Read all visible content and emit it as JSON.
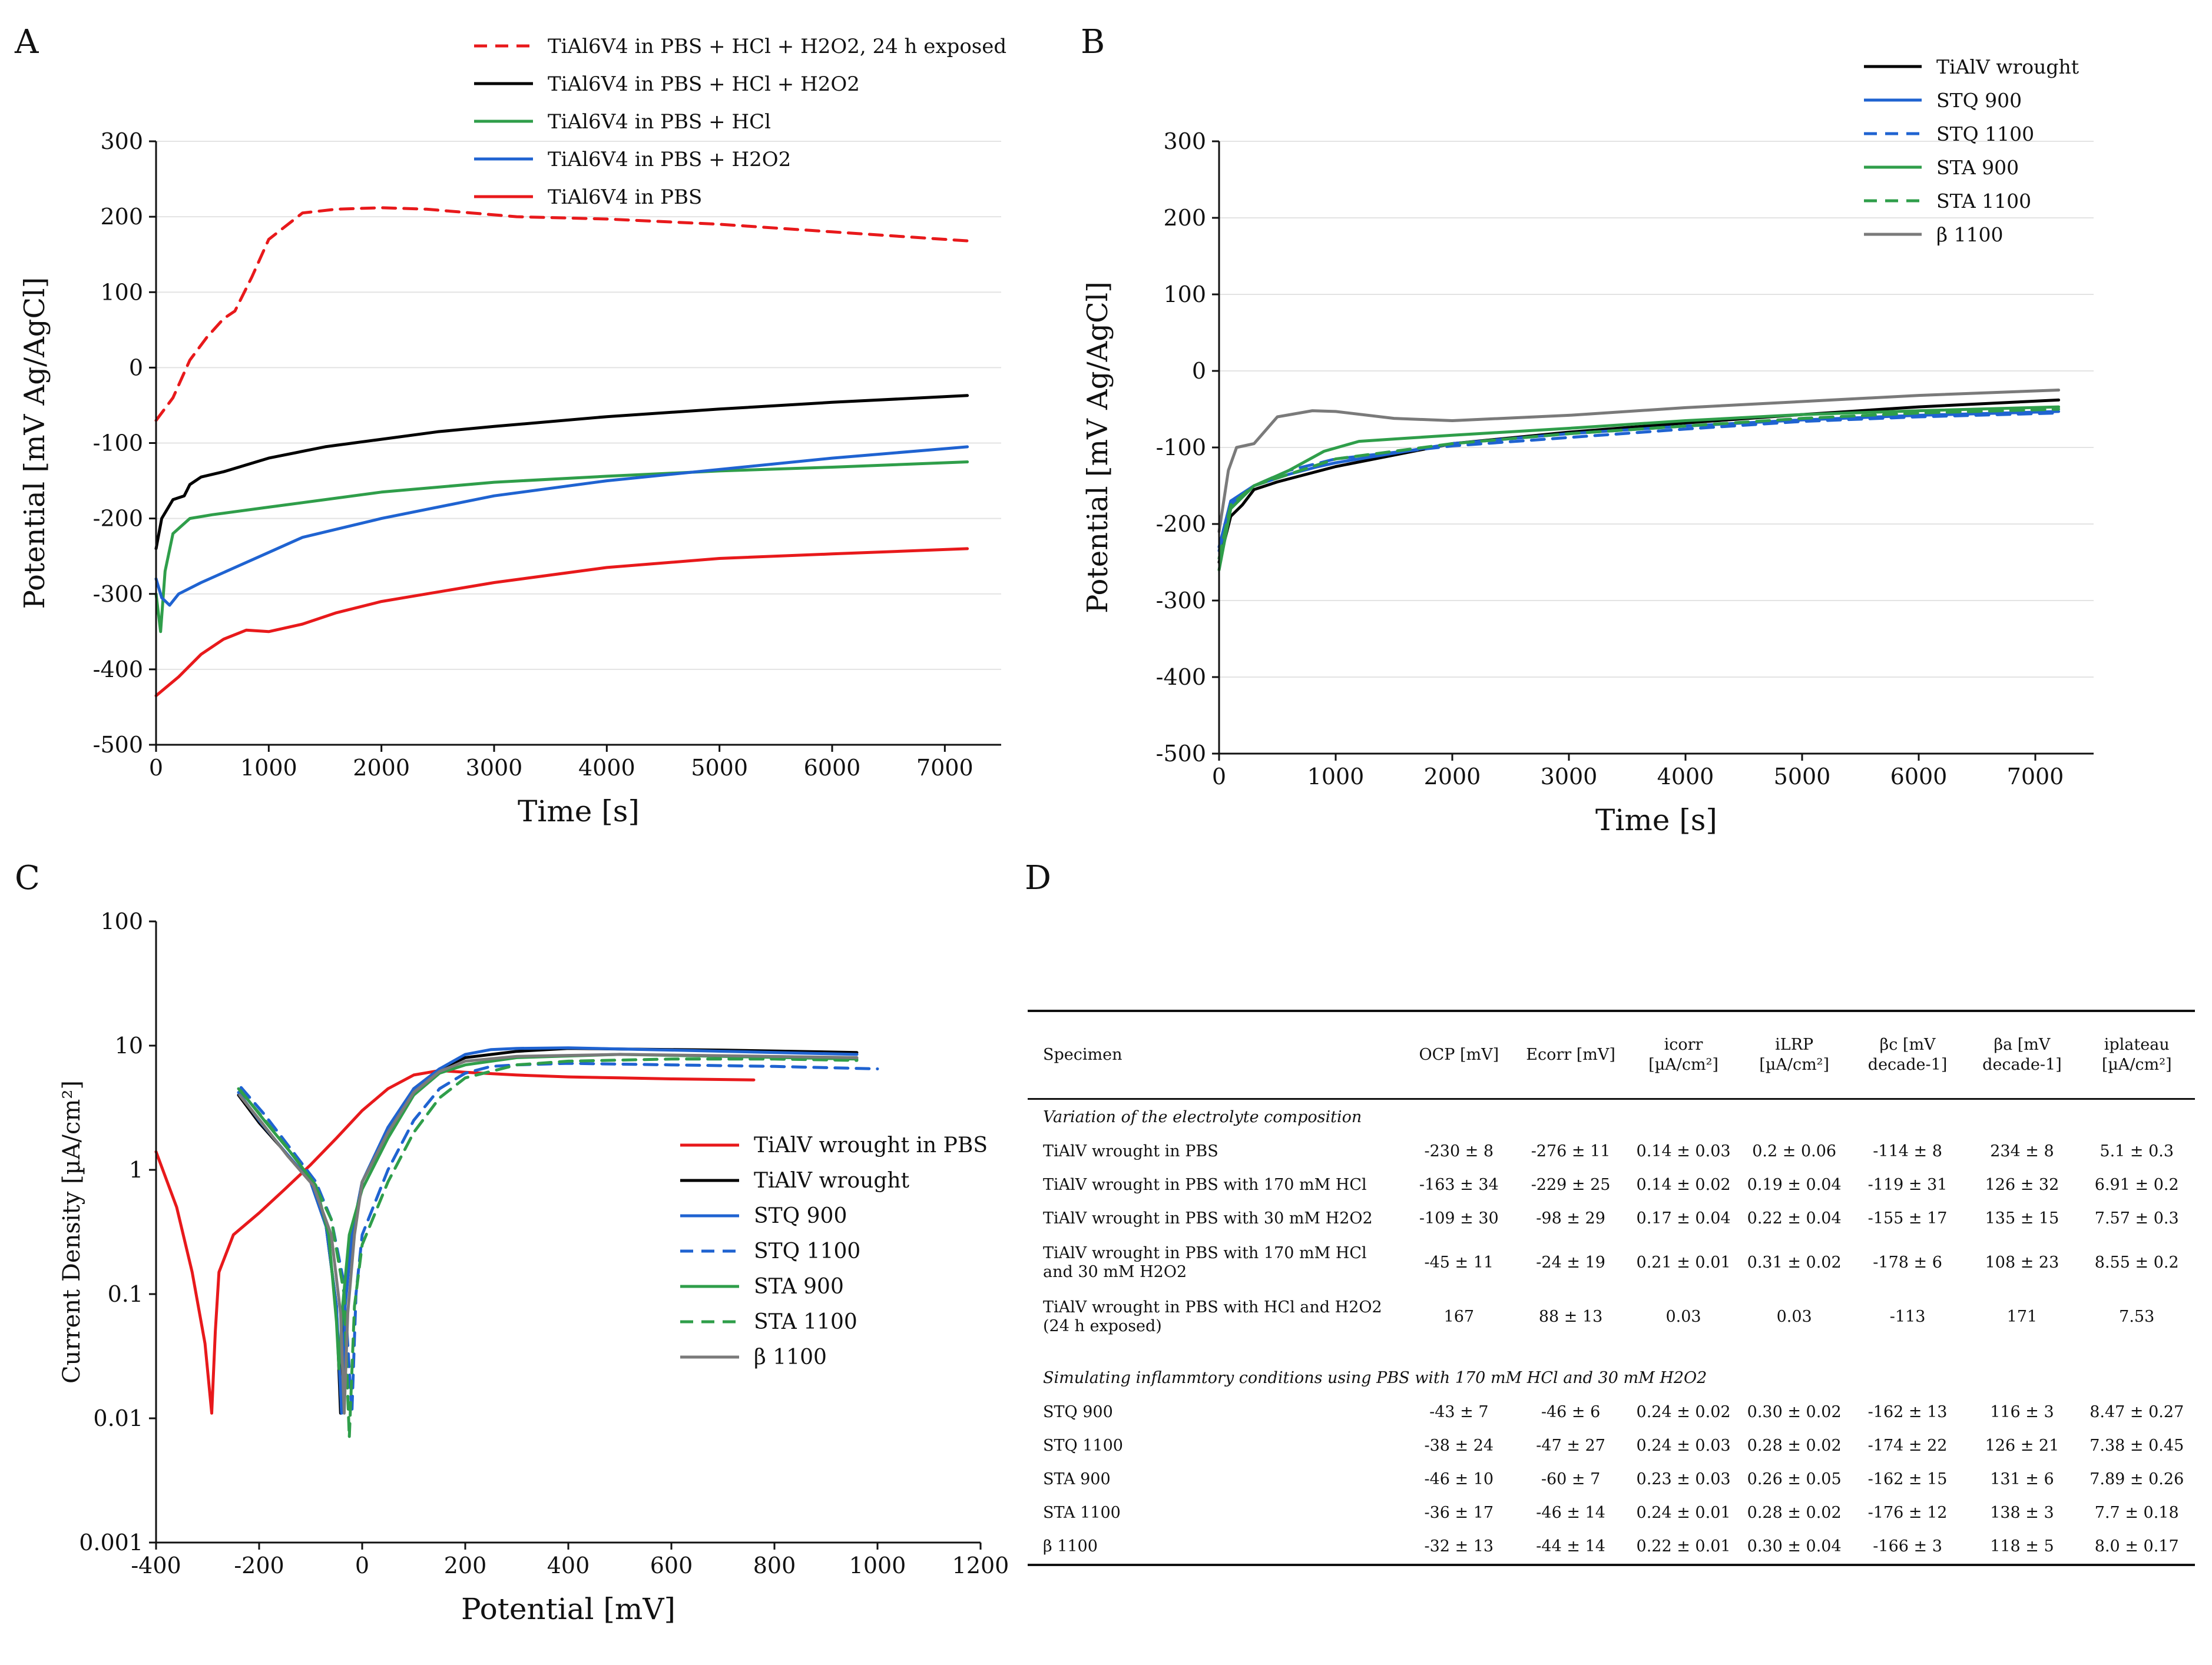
{
  "panels": {
    "A": "A",
    "B": "B",
    "C": "C",
    "D": "D"
  },
  "colors": {
    "red": "#e8191b",
    "black": "#000000",
    "green": "#2f9e4a",
    "blue": "#1f63d1",
    "gray": "#7a7a7a",
    "grid": "#e3e3e3"
  },
  "chart_data": [
    {
      "panel": "A",
      "type": "line",
      "xlabel": "Time [s]",
      "ylabel": "Potential [mV Ag/AgCl]",
      "xlim": [
        0,
        7500
      ],
      "ylim": [
        -500,
        300
      ],
      "x_ticks": [
        0,
        1000,
        2000,
        3000,
        4000,
        5000,
        6000,
        7000
      ],
      "y_ticks": [
        -500,
        -400,
        -300,
        -200,
        -100,
        0,
        100,
        200,
        300
      ],
      "grid": "horizontal",
      "legend_position": "top-right",
      "legend": [
        "TiAl6V4 in PBS + HCl + H2O2, 24 h exposed",
        "TiAl6V4 in PBS + HCl + H2O2",
        "TiAl6V4 in PBS + HCl",
        "TiAl6V4 in PBS + H2O2",
        "TiAl6V4 in PBS"
      ],
      "series": [
        {
          "name": "TiAl6V4 in PBS + HCl + H2O2, 24 h exposed",
          "color": "#e8191b",
          "dash": true,
          "x": [
            0,
            150,
            300,
            450,
            600,
            700,
            850,
            1000,
            1300,
            1600,
            2000,
            2400,
            2800,
            3200,
            4000,
            5000,
            6000,
            7200
          ],
          "y": [
            -70,
            -40,
            10,
            40,
            65,
            75,
            120,
            170,
            205,
            210,
            212,
            210,
            205,
            200,
            197,
            190,
            180,
            168
          ]
        },
        {
          "name": "TiAl6V4 in PBS + HCl + H2O2",
          "color": "#000000",
          "dash": false,
          "x": [
            0,
            50,
            150,
            250,
            300,
            400,
            600,
            1000,
            1500,
            2000,
            2500,
            3000,
            4000,
            5000,
            6000,
            7200
          ],
          "y": [
            -240,
            -200,
            -175,
            -170,
            -155,
            -145,
            -138,
            -120,
            -105,
            -95,
            -85,
            -78,
            -65,
            -55,
            -46,
            -37
          ]
        },
        {
          "name": "TiAl6V4 in PBS + HCl",
          "color": "#2f9e4a",
          "dash": false,
          "x": [
            0,
            40,
            80,
            150,
            300,
            500,
            1000,
            1500,
            2000,
            3000,
            4000,
            5000,
            6000,
            7200
          ],
          "y": [
            -300,
            -350,
            -270,
            -220,
            -200,
            -195,
            -185,
            -175,
            -165,
            -152,
            -144,
            -137,
            -132,
            -125
          ]
        },
        {
          "name": "TiAl6V4 in PBS + H2O2",
          "color": "#1f63d1",
          "dash": false,
          "x": [
            0,
            50,
            120,
            200,
            400,
            700,
            1000,
            1300,
            2000,
            3000,
            4000,
            5000,
            6000,
            7200
          ],
          "y": [
            -280,
            -305,
            -315,
            -300,
            -285,
            -265,
            -245,
            -225,
            -200,
            -170,
            -150,
            -135,
            -120,
            -105
          ]
        },
        {
          "name": "TiAl6V4 in PBS",
          "color": "#e8191b",
          "dash": false,
          "x": [
            0,
            200,
            400,
            600,
            800,
            1000,
            1300,
            1600,
            2000,
            3000,
            4000,
            5000,
            6000,
            7200
          ],
          "y": [
            -435,
            -410,
            -380,
            -360,
            -348,
            -350,
            -340,
            -325,
            -310,
            -285,
            -265,
            -253,
            -247,
            -240
          ]
        }
      ]
    },
    {
      "panel": "B",
      "type": "line",
      "xlabel": "Time [s]",
      "ylabel": "Potential [mV Ag/AgCl]",
      "xlim": [
        0,
        7500
      ],
      "ylim": [
        -500,
        300
      ],
      "x_ticks": [
        0,
        1000,
        2000,
        3000,
        4000,
        5000,
        6000,
        7000
      ],
      "y_ticks": [
        -500,
        -400,
        -300,
        -200,
        -100,
        0,
        100,
        200,
        300
      ],
      "grid": "horizontal",
      "legend_position": "top-right",
      "legend": [
        "TiAlV wrought",
        "STQ 900",
        "STQ 1100",
        "STA  900",
        "STA 1100",
        "β 1100"
      ],
      "series": [
        {
          "name": "TiAlV wrought",
          "color": "#000000",
          "dash": false,
          "x": [
            0,
            100,
            200,
            300,
            500,
            1000,
            2000,
            3000,
            4000,
            5000,
            6000,
            7200
          ],
          "y": [
            -250,
            -190,
            -175,
            -155,
            -145,
            -125,
            -95,
            -80,
            -68,
            -57,
            -47,
            -38
          ]
        },
        {
          "name": "STQ 900",
          "color": "#1f63d1",
          "dash": false,
          "x": [
            0,
            100,
            300,
            600,
            850,
            1000,
            2000,
            3000,
            4000,
            5000,
            6000,
            7200
          ],
          "y": [
            -230,
            -170,
            -150,
            -135,
            -125,
            -120,
            -95,
            -82,
            -72,
            -64,
            -58,
            -53
          ]
        },
        {
          "name": "STQ 1100",
          "color": "#1f63d1",
          "dash": true,
          "x": [
            0,
            100,
            300,
            600,
            1000,
            2000,
            3000,
            4000,
            5000,
            6000,
            7200
          ],
          "y": [
            -235,
            -175,
            -150,
            -130,
            -115,
            -98,
            -87,
            -76,
            -66,
            -60,
            -55
          ]
        },
        {
          "name": "STA  900",
          "color": "#2f9e4a",
          "dash": false,
          "x": [
            0,
            100,
            300,
            600,
            900,
            1200,
            1600,
            2000,
            3000,
            4000,
            5000,
            6000,
            7200
          ],
          "y": [
            -260,
            -180,
            -150,
            -130,
            -105,
            -92,
            -88,
            -84,
            -75,
            -65,
            -57,
            -52,
            -47
          ]
        },
        {
          "name": "STA 1100",
          "color": "#2f9e4a",
          "dash": true,
          "x": [
            0,
            100,
            300,
            600,
            1000,
            2000,
            3000,
            4000,
            5000,
            6000,
            7200
          ],
          "y": [
            -245,
            -175,
            -150,
            -135,
            -115,
            -95,
            -82,
            -72,
            -62,
            -55,
            -50
          ]
        },
        {
          "name": "β 1100",
          "color": "#7a7a7a",
          "dash": false,
          "x": [
            0,
            80,
            150,
            300,
            500,
            800,
            1000,
            1500,
            2000,
            3000,
            4000,
            5000,
            6000,
            7200
          ],
          "y": [
            -210,
            -130,
            -100,
            -95,
            -60,
            -52,
            -53,
            -62,
            -65,
            -58,
            -48,
            -40,
            -32,
            -25
          ]
        }
      ]
    },
    {
      "panel": "C",
      "type": "line",
      "xlabel": "Potential [mV]",
      "ylabel": "Current Density [µA/cm²]",
      "xlim": [
        -400,
        1200
      ],
      "ylim": [
        0.001,
        100
      ],
      "yscale": "log",
      "x_ticks": [
        -400,
        -200,
        0,
        200,
        400,
        600,
        800,
        1000,
        1200
      ],
      "y_ticks": [
        0.001,
        0.01,
        0.1,
        1,
        10,
        100
      ],
      "y_tick_labels": [
        "0.001",
        "0.01",
        "0.1",
        "1",
        "10",
        "100"
      ],
      "grid": "none",
      "legend_position": "right",
      "legend": [
        "TiAlV wrought in PBS",
        "TiAlV wrought",
        "STQ 900",
        "STQ 1100",
        "STA 900",
        "STA 1100",
        "β 1100"
      ],
      "series": [
        {
          "name": "TiAlV wrought in PBS",
          "color": "#e8191b",
          "dash": false,
          "x": [
            -400,
            -360,
            -330,
            -305,
            -292,
            -285,
            -278,
            -250,
            -200,
            -150,
            -100,
            -50,
            0,
            50,
            100,
            150,
            200,
            300,
            400,
            500,
            600,
            760
          ],
          "y": [
            1.4,
            0.5,
            0.15,
            0.04,
            0.011,
            0.05,
            0.15,
            0.3,
            0.45,
            0.7,
            1.1,
            1.8,
            3.0,
            4.5,
            5.8,
            6.3,
            6.1,
            5.8,
            5.6,
            5.5,
            5.4,
            5.3
          ]
        },
        {
          "name": "TiAlV wrought",
          "color": "#000000",
          "dash": false,
          "x": [
            -240,
            -200,
            -150,
            -100,
            -70,
            -50,
            -42,
            -35,
            -20,
            0,
            50,
            100,
            150,
            200,
            300,
            400,
            500,
            700,
            960
          ],
          "y": [
            4.0,
            2.4,
            1.4,
            0.8,
            0.35,
            0.08,
            0.011,
            0.08,
            0.3,
            0.8,
            2.0,
            4.5,
            6.5,
            8.0,
            9.0,
            9.5,
            9.4,
            9.2,
            8.8
          ]
        },
        {
          "name": "STQ 900",
          "color": "#1f63d1",
          "dash": false,
          "x": [
            -240,
            -200,
            -150,
            -100,
            -70,
            -50,
            -40,
            -33,
            -20,
            0,
            50,
            100,
            150,
            200,
            250,
            300,
            400,
            600,
            960
          ],
          "y": [
            4.2,
            2.5,
            1.4,
            0.8,
            0.35,
            0.08,
            0.011,
            0.08,
            0.3,
            0.8,
            2.2,
            4.5,
            6.5,
            8.5,
            9.3,
            9.5,
            9.6,
            9.2,
            8.5
          ]
        },
        {
          "name": "STQ 1100",
          "color": "#1f63d1",
          "dash": true,
          "x": [
            -235,
            -190,
            -140,
            -90,
            -60,
            -35,
            -20,
            -12,
            0,
            50,
            100,
            150,
            200,
            250,
            300,
            400,
            600,
            800,
            1000
          ],
          "y": [
            4.6,
            2.8,
            1.5,
            0.8,
            0.4,
            0.12,
            0.011,
            0.1,
            0.3,
            1.0,
            2.5,
            4.5,
            6.0,
            6.8,
            7.0,
            7.2,
            7.0,
            6.8,
            6.5
          ]
        },
        {
          "name": "STA 900",
          "color": "#2f9e4a",
          "dash": false,
          "x": [
            -235,
            -190,
            -140,
            -90,
            -65,
            -50,
            -45,
            -38,
            -25,
            0,
            50,
            100,
            150,
            200,
            300,
            500,
            700,
            960
          ],
          "y": [
            4.3,
            2.5,
            1.4,
            0.75,
            0.3,
            0.06,
            0.025,
            0.08,
            0.3,
            0.7,
            1.8,
            4.0,
            6.0,
            7.0,
            8.0,
            8.5,
            8.2,
            7.8
          ]
        },
        {
          "name": "STA 1100",
          "color": "#2f9e4a",
          "dash": true,
          "x": [
            -240,
            -195,
            -145,
            -95,
            -60,
            -35,
            -25,
            -15,
            0,
            50,
            100,
            150,
            200,
            300,
            400,
            600,
            800,
            960
          ],
          "y": [
            4.5,
            2.7,
            1.5,
            0.8,
            0.4,
            0.1,
            0.007,
            0.08,
            0.25,
            0.8,
            2.0,
            3.8,
            5.5,
            7.0,
            7.5,
            7.8,
            7.8,
            7.6
          ]
        },
        {
          "name": "β 1100",
          "color": "#7a7a7a",
          "dash": false,
          "x": [
            -238,
            -195,
            -145,
            -95,
            -60,
            -42,
            -35,
            -28,
            -15,
            0,
            50,
            100,
            150,
            200,
            300,
            500,
            700,
            960
          ],
          "y": [
            4.0,
            2.4,
            1.3,
            0.75,
            0.3,
            0.07,
            0.011,
            0.07,
            0.3,
            0.8,
            2.0,
            4.2,
            6.2,
            7.5,
            8.2,
            8.5,
            8.3,
            8.0
          ]
        }
      ]
    },
    {
      "panel": "D",
      "type": "table",
      "columns": [
        "Specimen",
        "OCP [mV]",
        "Ecorr [mV]",
        "icorr [µA/cm²]",
        "iLRP [µA/cm²]",
        "βc [mV decade-1]",
        "βa [mV decade-1]",
        "iplateau [µA/cm²]"
      ],
      "sections": [
        {
          "title": "Variation of the electrolyte composition",
          "rows": [
            [
              "TiAlV wrought in PBS",
              "-230 ± 8",
              "-276 ± 11",
              "0.14 ± 0.03",
              "0.2 ± 0.06",
              "-114 ± 8",
              "234 ± 8",
              "5.1 ± 0.3"
            ],
            [
              "TiAlV wrought in PBS with 170 mM HCl",
              "-163 ± 34",
              "-229 ± 25",
              "0.14 ± 0.02",
              "0.19 ± 0.04",
              "-119 ± 31",
              "126 ± 32",
              "6.91 ± 0.2"
            ],
            [
              "TiAlV wrought in PBS with 30 mM H2O2",
              "-109 ± 30",
              "-98 ± 29",
              "0.17 ± 0.04",
              "0.22 ± 0.04",
              "-155 ± 17",
              "135 ± 15",
              "7.57 ± 0.3"
            ],
            [
              "TiAlV wrought in PBS with 170 mM HCl and 30 mM H2O2",
              "-45 ± 11",
              "-24 ± 19",
              "0.21 ± 0.01",
              "0.31 ± 0.02",
              "-178 ± 6",
              "108 ± 23",
              "8.55 ± 0.2"
            ],
            [
              "TiAlV wrought in PBS with HCl and H2O2 (24 h exposed)",
              "167",
              "88 ± 13",
              "0.03",
              "0.03",
              "-113",
              "171",
              "7.53"
            ]
          ]
        },
        {
          "title": "Simulating inflammtory conditions using PBS with 170 mM HCl and 30 mM H2O2",
          "rows": [
            [
              "STQ 900",
              "-43 ± 7",
              "-46 ± 6",
              "0.24 ± 0.02",
              "0.30 ± 0.02",
              "-162 ± 13",
              "116 ± 3",
              "8.47 ± 0.27"
            ],
            [
              "STQ 1100",
              "-38 ± 24",
              "-47 ± 27",
              "0.24 ± 0.03",
              "0.28 ± 0.02",
              "-174 ± 22",
              "126 ± 21",
              "7.38 ± 0.45"
            ],
            [
              "STA 900",
              "-46 ± 10",
              "-60 ± 7",
              "0.23 ± 0.03",
              "0.26 ± 0.05",
              "-162 ± 15",
              "131 ± 6",
              "7.89 ± 0.26"
            ],
            [
              "STA 1100",
              "-36 ± 17",
              "-46 ± 14",
              "0.24 ± 0.01",
              "0.28 ± 0.02",
              "-176 ± 12",
              "138 ± 3",
              "7.7 ± 0.18"
            ],
            [
              "β 1100",
              "-32 ± 13",
              "-44 ± 14",
              "0.22 ± 0.01",
              "0.30 ± 0.04",
              "-166 ± 3",
              "118 ± 5",
              "8.0 ± 0.17"
            ]
          ]
        }
      ]
    }
  ]
}
